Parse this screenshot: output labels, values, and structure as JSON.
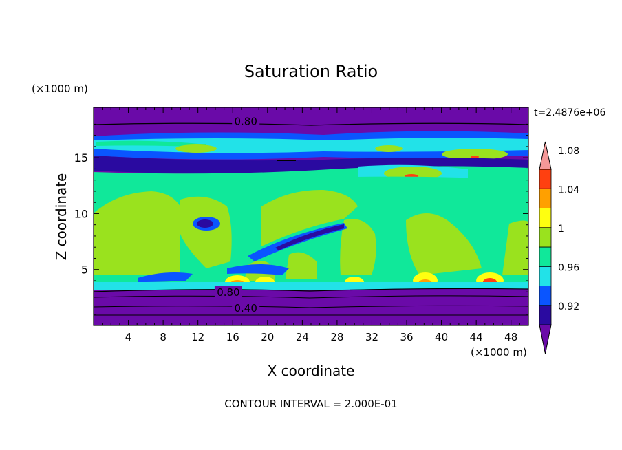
{
  "chart_data": {
    "type": "heatmap",
    "title": "Saturation Ratio",
    "xlabel": "X coordinate",
    "ylabel": "Z coordinate",
    "x_unit": "(×1000 m)",
    "y_unit": "(×1000 m)",
    "time_label": "t=2.4876e+06",
    "footer": "CONTOUR INTERVAL = 2.000E-01",
    "xlim": [
      0,
      50
    ],
    "ylim": [
      0,
      19.5
    ],
    "x_ticks": [
      "4",
      "8",
      "12",
      "16",
      "20",
      "24",
      "28",
      "32",
      "36",
      "40",
      "44",
      "48"
    ],
    "x_tick_values": [
      4,
      8,
      12,
      16,
      20,
      24,
      28,
      32,
      36,
      40,
      44,
      48
    ],
    "y_ticks": [
      "5",
      "10",
      "15"
    ],
    "y_tick_values": [
      5,
      10,
      15
    ],
    "contour_labels": [
      {
        "text": "0.80",
        "x": 17.5,
        "z": 18.3
      },
      {
        "text": "0.80",
        "x": 15.5,
        "z": 3.0
      },
      {
        "text": "0.40",
        "x": 17.5,
        "z": 1.6
      }
    ],
    "colorbar": {
      "labels": [
        "1.08",
        "1.04",
        "1",
        "0.96",
        "0.92"
      ],
      "colors": [
        "#6a0aa8",
        "#2a0aa0",
        "#0a55ff",
        "#22e2e8",
        "#10e89a",
        "#9ae21e",
        "#ffff10",
        "#ffa000",
        "#ff4010",
        "#f49898"
      ]
    }
  }
}
